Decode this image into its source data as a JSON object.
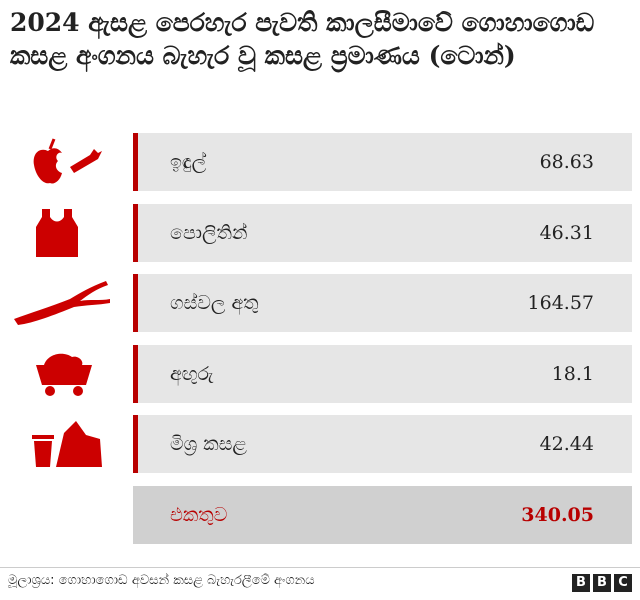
{
  "header": {
    "title": "2024 ඇසළ පෙරහැර පැවති කාලසීමාවේ ගොහාගොඩ කසළ අංගනය බැහැර වූ කසළ ප්‍රමාණය (ටොන්)"
  },
  "table": {
    "rows": [
      [
        "ඉඳුල්",
        68.63
      ],
      [
        "පොලිතින්",
        46.31
      ],
      [
        "ගස්වල අතු",
        164.57
      ],
      [
        "අඟුරු",
        18.1
      ],
      [
        "මිශ්‍ර කසළ",
        42.44
      ]
    ],
    "total": [
      "එකතුව",
      340.05
    ]
  },
  "footer": {
    "source": "මූලාශ්‍රය: ගොහාගොඩ අවසන් කසළ බැහැරලීමේ අංගනය",
    "logo": [
      "B",
      "B",
      "C"
    ]
  }
}
